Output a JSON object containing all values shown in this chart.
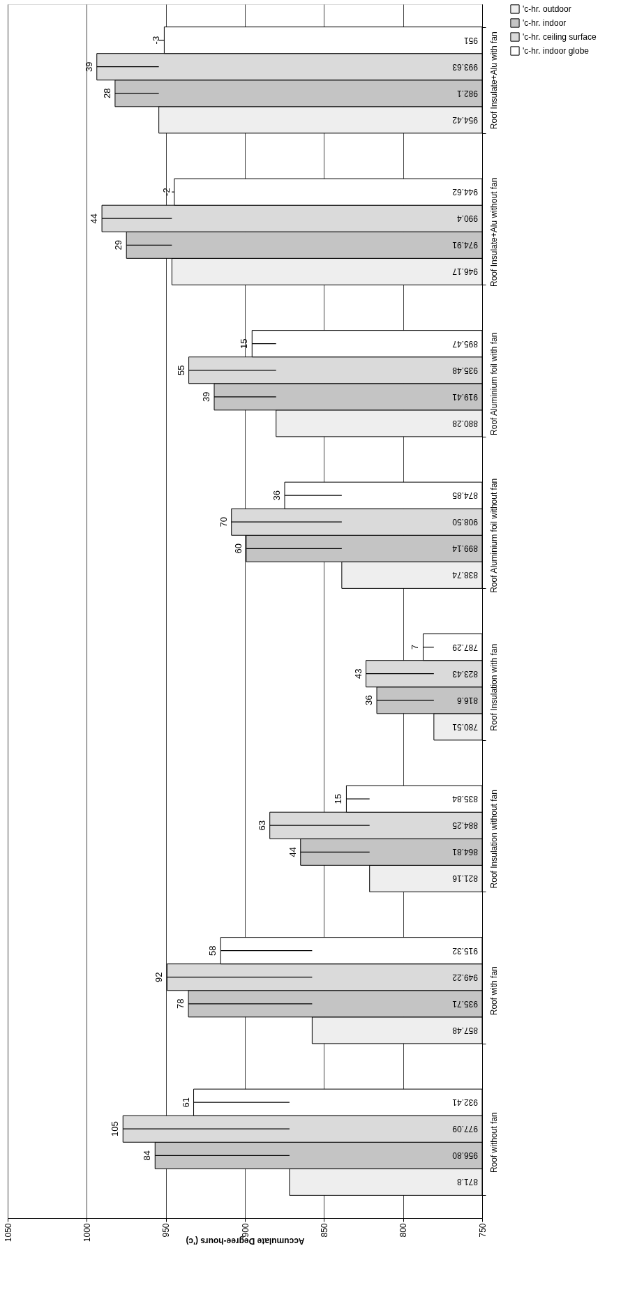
{
  "chart_data": {
    "type": "bar",
    "orientation": "horizontal",
    "categories": [
      "Roof Insulate+Alu with fan",
      "Roof Insulate+Alu without fan",
      "Roof Aluminium foil with fan",
      "Roof Aluminium foil without fan",
      "Roof Insulation with fan",
      "Roof Insulation without fan",
      "Roof with fan",
      "Roof without fan"
    ],
    "series": [
      {
        "name": "'c-hr. outdoor",
        "color": "#eeeeee",
        "values": [
          954.42,
          946.17,
          880.28,
          838.74,
          780.51,
          821.16,
          857.48,
          871.8
        ],
        "value_labels": [
          "954.42",
          "946.17",
          "880.28",
          "838.74",
          "780.51",
          "821.16",
          "857.48",
          "871.8"
        ]
      },
      {
        "name": "'c-hr. indoor",
        "color": "#c4c4c4",
        "values": [
          982.1,
          974.91,
          919.41,
          899.14,
          816.6,
          864.81,
          935.71,
          956.8
        ],
        "value_labels": [
          "982.1",
          "974.91",
          "919.41",
          "899.14",
          "816.6",
          "864.81",
          "935.71",
          "956.80"
        ]
      },
      {
        "name": "'c-hr. ceiling surface",
        "color": "#dadada",
        "values": [
          993.63,
          990.4,
          935.48,
          908.5,
          823.43,
          884.25,
          949.22,
          977.09
        ],
        "value_labels": [
          "993.63",
          "990.4",
          "935.48",
          "908.50",
          "823.43",
          "884.25",
          "949.22",
          "977.09"
        ]
      },
      {
        "name": "'c-hr. indoor globe",
        "color": "#ffffff",
        "values": [
          951,
          944.62,
          895.47,
          874.85,
          787.29,
          835.84,
          915.32,
          932.41
        ],
        "value_labels": [
          "951",
          "944.62",
          "895.47",
          "874.85",
          "787.29",
          "835.84",
          "915.32",
          "932.41"
        ]
      }
    ],
    "xlabel": "Accumulate Degree-hours ('c)",
    "xlim": [
      1050,
      750
    ],
    "xticks": [
      1050,
      1000,
      950,
      900,
      850,
      800,
      750
    ],
    "grid": "x",
    "legend": "right",
    "annotations": [
      {
        "text": "28",
        "x": 982.1,
        "y": "Roof Insulate+Alu with fan"
      },
      {
        "text": "39",
        "x": 993.63,
        "y": "Roof Insulate+Alu with fan"
      },
      "-3",
      {
        "text": "29",
        "x": 974.91,
        "y": "Roof Insulate+Alu without fan"
      },
      {
        "text": "44",
        "x": 990.4,
        "y": "Roof Insulate+Alu without fan"
      },
      "-2",
      {
        "text": "39",
        "x": 919.41,
        "y": "Roof Aluminium foil with fan"
      },
      {
        "text": "55",
        "x": 935.48,
        "y": "Roof Aluminium foil with fan"
      },
      "15",
      {
        "text": "60",
        "x": 899.14,
        "y": "Roof Aluminium foil without fan"
      },
      {
        "text": "70",
        "x": 908.5,
        "y": "Roof Aluminium foil without fan"
      },
      "36",
      {
        "text": "36",
        "x": 816.6,
        "y": "Roof Insulation with fan"
      },
      {
        "text": "43",
        "x": 823.43,
        "y": "Roof Insulation with fan"
      },
      "7",
      {
        "text": "44",
        "x": 864.81,
        "y": "Roof Insulation without fan"
      },
      {
        "text": "63",
        "x": 884.25,
        "y": "Roof Insulation without fan"
      },
      "15",
      {
        "text": "78",
        "x": 935.71,
        "y": "Roof with fan"
      },
      {
        "text": "92",
        "x": 949.22,
        "y": "Roof with fan"
      },
      "58",
      {
        "text": "84",
        "x": 956.8,
        "y": "Roof without fan"
      },
      {
        "text": "105",
        "x": 977.09,
        "y": "Roof without fan"
      },
      "61"
    ]
  }
}
